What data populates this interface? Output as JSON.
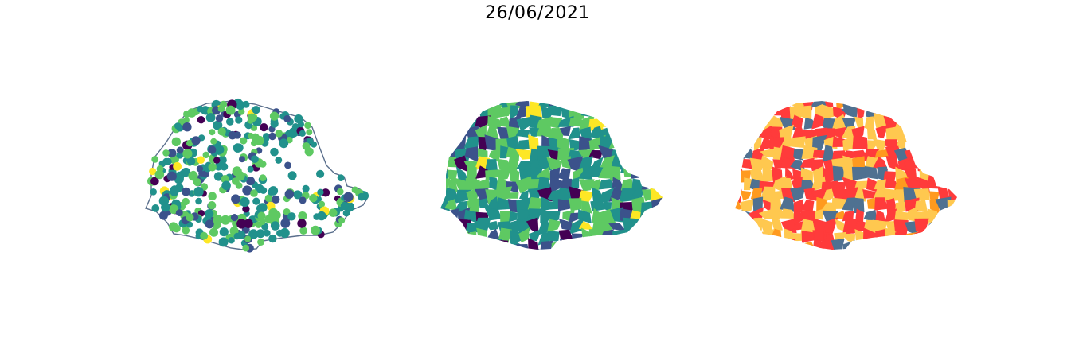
{
  "title": "26/06/2021",
  "colors": {
    "outline": "#5a6f8c",
    "viridis": [
      "#440154",
      "#3b528b",
      "#21918c",
      "#5ec962",
      "#fde725"
    ],
    "categorical": [
      "#ff3b3b",
      "#ffc84f",
      "#4f7191",
      "#ff9a1f"
    ]
  },
  "panels": [
    {
      "name": "points",
      "type": "proportional-points"
    },
    {
      "name": "viridis-choropleth",
      "type": "choropleth"
    },
    {
      "name": "categorical-choropleth",
      "type": "choropleth"
    }
  ]
}
